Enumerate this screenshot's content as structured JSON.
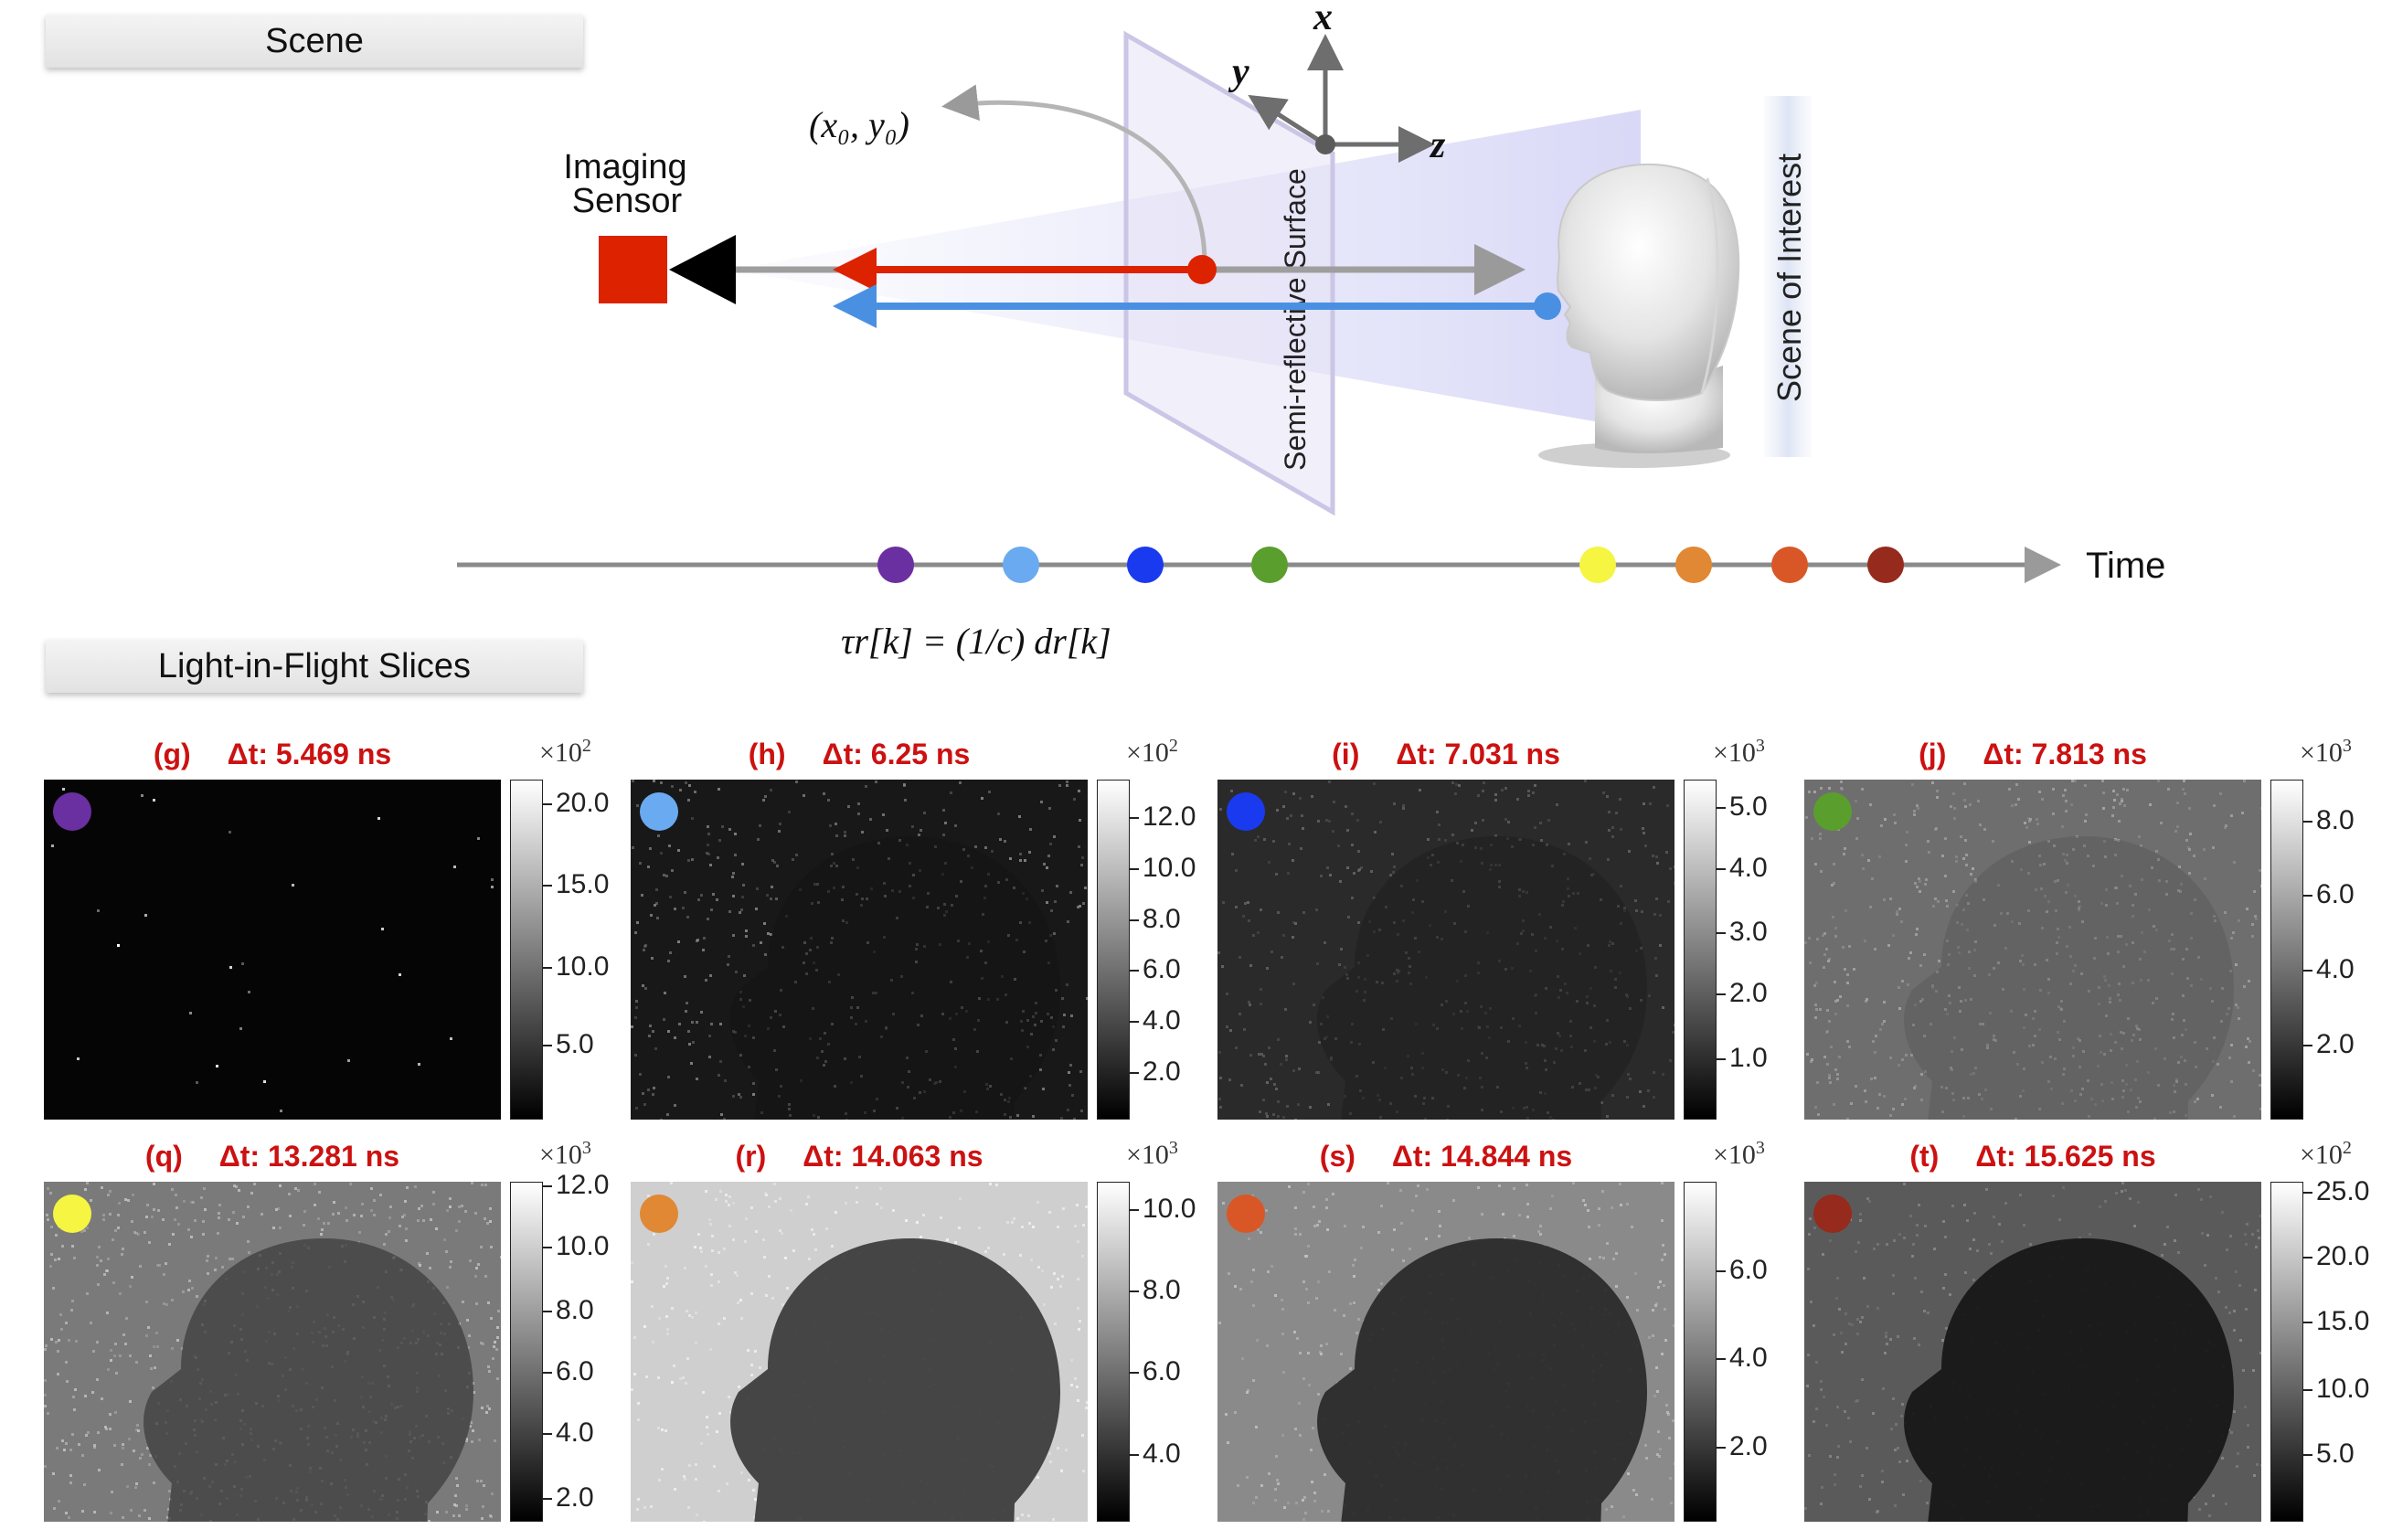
{
  "tabs": {
    "scene": "Scene",
    "slices": "Light-in-Flight Slices"
  },
  "diagram": {
    "sensor_label_line1": "Imaging",
    "sensor_label_line2": "Sensor",
    "surface_label": "Semi-reflective Surface",
    "scene_label": "Scene of Interest",
    "point_label": "(x₀, y₀)",
    "axis_x": "x",
    "axis_y": "y",
    "axis_z": "z",
    "time_label": "Time",
    "formula": "τr[k] = (1/c) dr[k]",
    "colors": {
      "sensor": "#dd2200",
      "red_ray": "#dd2200",
      "blue_ray": "#4a90e2",
      "gray_ray": "#9a9a9a",
      "surface": "#d6d0ec"
    },
    "timeline_markers": [
      "#6a2fa0",
      "#6aaaf0",
      "#1a3af0",
      "#5a9e2e",
      "#f5f542",
      "#e08834",
      "#d95727",
      "#962a1c"
    ]
  },
  "panels": [
    {
      "letter": "(g)",
      "dt": "Δt: 5.469 ns",
      "color": "#6a2fa0",
      "exponent_base": "×10",
      "exponent": "2",
      "ticks": [
        "20.0",
        "15.0",
        "10.0",
        "5.0"
      ],
      "tick_frac": [
        0.93,
        0.69,
        0.45,
        0.22
      ]
    },
    {
      "letter": "(h)",
      "dt": "Δt: 6.25 ns",
      "color": "#6aaaf0",
      "exponent_base": "×10",
      "exponent": "2",
      "ticks": [
        "12.0",
        "10.0",
        "8.0",
        "6.0",
        "4.0",
        "2.0"
      ],
      "tick_frac": [
        0.89,
        0.74,
        0.59,
        0.44,
        0.29,
        0.14
      ]
    },
    {
      "letter": "(i)",
      "dt": "Δt: 7.031 ns",
      "color": "#1a3af0",
      "exponent_base": "×10",
      "exponent": "3",
      "ticks": [
        "5.0",
        "4.0",
        "3.0",
        "2.0",
        "1.0"
      ],
      "tick_frac": [
        0.92,
        0.74,
        0.55,
        0.37,
        0.18
      ]
    },
    {
      "letter": "(j)",
      "dt": "Δt: 7.813 ns",
      "color": "#5a9e2e",
      "exponent_base": "×10",
      "exponent": "3",
      "ticks": [
        "8.0",
        "6.0",
        "4.0",
        "2.0"
      ],
      "tick_frac": [
        0.88,
        0.66,
        0.44,
        0.22
      ]
    },
    {
      "letter": "(q)",
      "dt": "Δt: 13.281 ns",
      "color": "#f5f542",
      "exponent_base": "×10",
      "exponent": "3",
      "ticks": [
        "12.0",
        "10.0",
        "8.0",
        "6.0",
        "4.0",
        "2.0"
      ],
      "tick_frac": [
        0.99,
        0.81,
        0.62,
        0.44,
        0.26,
        0.07
      ]
    },
    {
      "letter": "(r)",
      "dt": "Δt: 14.063 ns",
      "color": "#e08834",
      "exponent_base": "×10",
      "exponent": "3",
      "ticks": [
        "10.0",
        "8.0",
        "6.0",
        "4.0"
      ],
      "tick_frac": [
        0.92,
        0.68,
        0.44,
        0.2
      ]
    },
    {
      "letter": "(s)",
      "dt": "Δt: 14.844 ns",
      "color": "#d95727",
      "exponent_base": "×10",
      "exponent": "3",
      "ticks": [
        "6.0",
        "4.0",
        "2.0"
      ],
      "tick_frac": [
        0.74,
        0.48,
        0.22
      ]
    },
    {
      "letter": "(t)",
      "dt": "Δt: 15.625 ns",
      "color": "#962a1c",
      "exponent_base": "×10",
      "exponent": "2",
      "ticks": [
        "25.0",
        "20.0",
        "15.0",
        "10.0",
        "5.0"
      ],
      "tick_frac": [
        0.97,
        0.78,
        0.59,
        0.39,
        0.2
      ]
    }
  ]
}
